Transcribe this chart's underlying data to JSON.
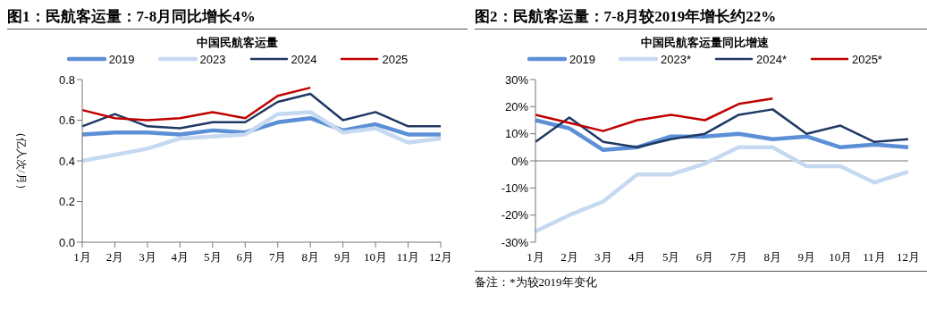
{
  "chart_data": [
    {
      "type": "line",
      "title": "图1：民航客运量：7-8月同比增长4%",
      "subtitle": "中国民航客运量",
      "ylabel": "（亿人次/月）",
      "legend": "top",
      "categories": [
        "1月",
        "2月",
        "3月",
        "4月",
        "5月",
        "6月",
        "7月",
        "8月",
        "9月",
        "10月",
        "11月",
        "12月"
      ],
      "ylim": [
        0,
        0.8
      ],
      "yticks": [
        {
          "value": 0,
          "label": "0.0"
        },
        0.2,
        0.4,
        0.6,
        0.8
      ],
      "series": [
        {
          "name": "2019",
          "color": "#5b8fd6",
          "values": [
            0.53,
            0.54,
            0.54,
            0.53,
            0.55,
            0.54,
            0.59,
            0.61,
            0.55,
            0.58,
            0.53,
            0.53
          ]
        },
        {
          "name": "2023",
          "color": "#c5d9f1",
          "values": [
            0.4,
            0.43,
            0.46,
            0.51,
            0.52,
            0.53,
            0.63,
            0.64,
            0.54,
            0.56,
            0.49,
            0.51
          ]
        },
        {
          "name": "2024",
          "color": "#1f3864",
          "values": [
            0.57,
            0.63,
            0.57,
            0.56,
            0.59,
            0.59,
            0.69,
            0.73,
            0.6,
            0.64,
            0.57,
            0.57
          ]
        },
        {
          "name": "2025",
          "color": "#c00000",
          "values": [
            0.65,
            0.61,
            0.6,
            0.61,
            0.64,
            0.61,
            0.72,
            0.76,
            null,
            null,
            null,
            null
          ]
        }
      ]
    },
    {
      "type": "line",
      "title": "图2：民航客运量：7-8月较2019年增长约22%",
      "subtitle": "中国民航客运量同比增速",
      "legend": "top",
      "categories": [
        "1月",
        "2月",
        "3月",
        "4月",
        "5月",
        "6月",
        "7月",
        "8月",
        "9月",
        "10月",
        "11月",
        "12月"
      ],
      "ylim": [
        -30,
        30
      ],
      "yticks": [
        {
          "value": -30,
          "label": "-30%"
        },
        {
          "value": -20,
          "label": "-20%"
        },
        {
          "value": -10,
          "label": "-10%"
        },
        {
          "value": 0,
          "label": "0%"
        },
        {
          "value": 10,
          "label": "10%"
        },
        {
          "value": 20,
          "label": "20%"
        },
        {
          "value": 30,
          "label": "30%"
        }
      ],
      "annotations": [
        "备注：*为较2019年变化"
      ],
      "series": [
        {
          "name": "2019",
          "color": "#5b8fd6",
          "values": [
            15,
            12,
            4,
            5,
            9,
            9,
            10,
            8,
            9,
            5,
            6,
            5
          ]
        },
        {
          "name": "2023*",
          "color": "#c5d9f1",
          "values": [
            -26,
            -20,
            -15,
            -5,
            -5,
            -1,
            5,
            5,
            -2,
            -2,
            -8,
            -4
          ]
        },
        {
          "name": "2024*",
          "color": "#1f3864",
          "values": [
            7,
            16,
            7,
            5,
            8,
            10,
            17,
            19,
            10,
            13,
            7,
            8
          ]
        },
        {
          "name": "2025*",
          "color": "#c00000",
          "values": [
            17,
            14,
            11,
            15,
            17,
            15,
            21,
            23,
            null,
            null,
            null,
            null
          ]
        }
      ]
    }
  ]
}
